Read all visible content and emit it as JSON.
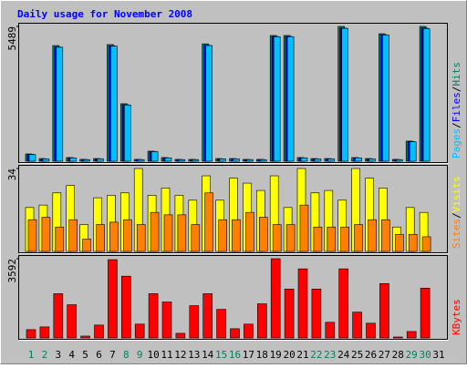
{
  "chart_data": [
    {
      "type": "bar",
      "title": "Daily usage for November 2008",
      "legend_separator": "/",
      "series": [
        {
          "name": "Hits",
          "color": "#00805C",
          "values": [
            297,
            110,
            4710,
            150,
            75,
            110,
            4750,
            2340,
            75,
            410,
            150,
            75,
            75,
            4780,
            110,
            110,
            75,
            75,
            5120,
            5120,
            150,
            110,
            110,
            5489,
            150,
            110,
            5190,
            75,
            820,
            5489,
            0
          ]
        },
        {
          "name": "Files",
          "color": "#0000FF",
          "values": [
            280,
            100,
            4650,
            140,
            70,
            100,
            4700,
            2300,
            70,
            400,
            140,
            70,
            70,
            4720,
            100,
            100,
            70,
            70,
            5080,
            5080,
            140,
            100,
            100,
            5420,
            140,
            100,
            5150,
            70,
            800,
            5420,
            0
          ]
        },
        {
          "name": "Pages",
          "color": "#00C0FF",
          "values": [
            270,
            95,
            4640,
            135,
            65,
            95,
            4690,
            2290,
            65,
            390,
            135,
            65,
            65,
            4710,
            95,
            95,
            65,
            65,
            5070,
            5070,
            135,
            95,
            95,
            5410,
            135,
            95,
            5140,
            65,
            790,
            5400,
            0
          ]
        }
      ],
      "ylim": [
        0,
        5489
      ],
      "yticks": [
        5489
      ]
    },
    {
      "type": "bar",
      "legend_separator": "/",
      "series": [
        {
          "name": "Visits",
          "color": "#FFFF00",
          "values": [
            18,
            19,
            24,
            27,
            11,
            22,
            23,
            24,
            34,
            23,
            26,
            23,
            21,
            31,
            21,
            30,
            28,
            25,
            31,
            18,
            34,
            24,
            25,
            21,
            34,
            30,
            26,
            10,
            18,
            16,
            0
          ]
        },
        {
          "name": "Sites",
          "color": "#FF8000",
          "values": [
            13,
            14,
            10,
            13,
            5,
            11,
            12,
            13,
            11,
            16,
            15,
            15,
            11,
            24,
            13,
            13,
            16,
            14,
            11,
            11,
            19,
            10,
            10,
            10,
            11,
            13,
            13,
            7,
            7,
            6,
            0
          ]
        }
      ],
      "ylim": [
        0,
        34
      ],
      "yticks": [
        34
      ]
    },
    {
      "type": "bar",
      "series": [
        {
          "name": "KBytes",
          "color": "#FF0000",
          "values": [
            376,
            500,
            2005,
            1505,
            84,
            585,
            3550,
            2800,
            627,
            2005,
            1630,
            209,
            1463,
            2005,
            1296,
            418,
            627,
            1547,
            3592,
            2215,
            3132,
            2215,
            710,
            3132,
            1170,
            668,
            2466,
            42,
            292,
            2257,
            0
          ]
        }
      ],
      "ylim": [
        0,
        3592
      ],
      "yticks": [
        3592
      ],
      "categories": [
        "1",
        "2",
        "3",
        "4",
        "5",
        "6",
        "7",
        "8",
        "9",
        "10",
        "11",
        "12",
        "13",
        "14",
        "15",
        "16",
        "17",
        "18",
        "19",
        "20",
        "21",
        "22",
        "23",
        "24",
        "25",
        "26",
        "27",
        "28",
        "29",
        "30",
        "31"
      ],
      "category_colors": [
        "#00805C",
        "#00805C",
        "#000000",
        "#000000",
        "#000000",
        "#000000",
        "#000000",
        "#00805C",
        "#00805C",
        "#000000",
        "#000000",
        "#000000",
        "#000000",
        "#000000",
        "#00805C",
        "#00805C",
        "#000000",
        "#000000",
        "#000000",
        "#000000",
        "#000000",
        "#00805C",
        "#00805C",
        "#000000",
        "#000000",
        "#000000",
        "#000000",
        "#000000",
        "#00805C",
        "#00805C",
        "#000000"
      ]
    }
  ]
}
